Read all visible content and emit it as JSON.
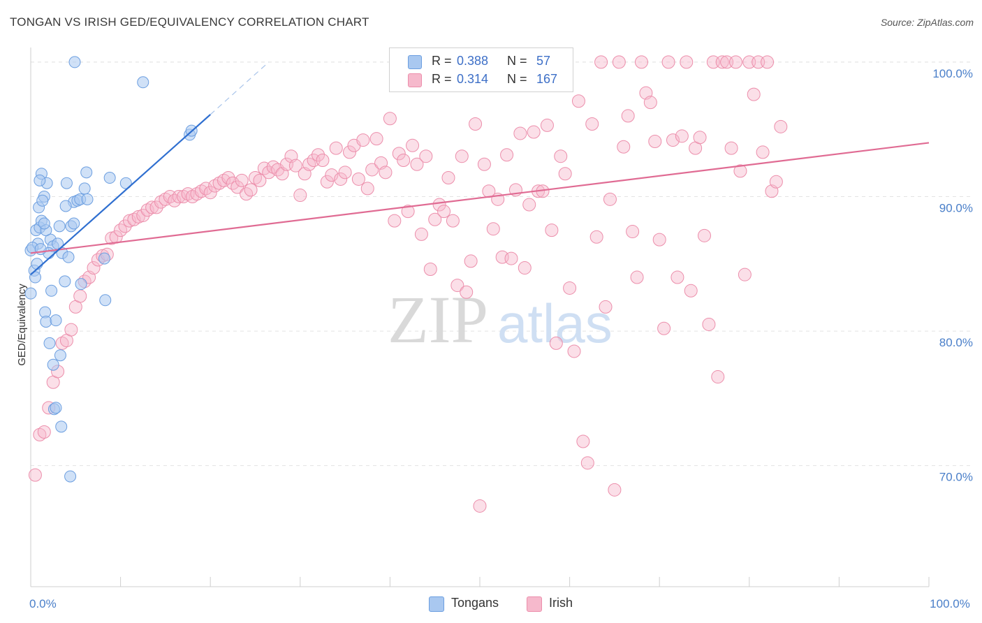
{
  "title": "TONGAN VS IRISH GED/EQUIVALENCY CORRELATION CHART",
  "source": "Source: ZipAtlas.com",
  "watermark": {
    "zip": "ZIP",
    "atlas": "atlas"
  },
  "colors": {
    "tongans_fill": "#a9c8f0",
    "tongans_stroke": "#6b9ee0",
    "tongans_line": "#2f6fd0",
    "irish_fill": "#f6b9cc",
    "irish_stroke": "#ec8eab",
    "irish_line": "#e06b93",
    "tick_label": "#4a7fc9",
    "grid": "#e3e3e3"
  },
  "legend": {
    "rows": [
      {
        "r_label": "R =",
        "r_value": "0.388",
        "n_label": "N =",
        "n_value": "57",
        "series": "tongans"
      },
      {
        "r_label": "R =",
        "r_value": "0.314",
        "n_label": "N =",
        "n_value": "167",
        "series": "irish"
      }
    ]
  },
  "bottom_legend": [
    {
      "label": "Tongans",
      "series": "tongans"
    },
    {
      "label": "Irish",
      "series": "irish"
    }
  ],
  "chart_data": {
    "type": "scatter",
    "title": "TONGAN VS IRISH GED/EQUIVALENCY CORRELATION CHART",
    "xlabel": "",
    "ylabel": "GED/Equivalency",
    "xlim": [
      0,
      100
    ],
    "ylim": [
      61,
      101.5
    ],
    "x_tick_labels": [
      {
        "value": 0,
        "label": "0.0%"
      },
      {
        "value": 100,
        "label": "100.0%"
      }
    ],
    "y_tick_labels": [
      {
        "value": 100,
        "label": "100.0%"
      },
      {
        "value": 90,
        "label": "90.0%"
      },
      {
        "value": 80,
        "label": "80.0%"
      },
      {
        "value": 70,
        "label": "70.0%"
      }
    ],
    "grid": "horizontal dashed",
    "legend_position": "top-center",
    "series": [
      {
        "name": "Tongans",
        "trendline": {
          "x": [
            0,
            20
          ],
          "y": [
            84.2,
            96.1
          ],
          "dashed_extension_to": [
            26.5,
            100
          ]
        },
        "points": [
          [
            0.0,
            86.0
          ],
          [
            0.6,
            87.5
          ],
          [
            0.8,
            86.5
          ],
          [
            1.0,
            87.7
          ],
          [
            1.2,
            88.2
          ],
          [
            1.5,
            90.0
          ],
          [
            1.8,
            91.0
          ],
          [
            2.2,
            86.8
          ],
          [
            2.5,
            86.3
          ],
          [
            3.0,
            86.5
          ],
          [
            3.2,
            87.8
          ],
          [
            3.5,
            85.8
          ],
          [
            4.5,
            87.8
          ],
          [
            4.8,
            89.6
          ],
          [
            5.2,
            89.7
          ],
          [
            5.5,
            89.8
          ],
          [
            6.0,
            90.6
          ],
          [
            0.9,
            89.2
          ],
          [
            1.3,
            89.7
          ],
          [
            0.4,
            84.5
          ],
          [
            0.5,
            84.0
          ],
          [
            1.6,
            81.4
          ],
          [
            1.7,
            80.7
          ],
          [
            2.8,
            80.8
          ],
          [
            2.3,
            83.0
          ],
          [
            3.8,
            83.7
          ],
          [
            5.6,
            83.5
          ],
          [
            8.2,
            85.4
          ],
          [
            8.3,
            82.3
          ],
          [
            2.1,
            79.1
          ],
          [
            3.3,
            78.2
          ],
          [
            2.5,
            77.5
          ],
          [
            2.6,
            74.2
          ],
          [
            2.8,
            74.3
          ],
          [
            3.4,
            72.9
          ],
          [
            4.4,
            69.2
          ],
          [
            1.2,
            91.7
          ],
          [
            1.0,
            91.2
          ],
          [
            4.0,
            91.0
          ],
          [
            6.2,
            91.8
          ],
          [
            8.8,
            91.4
          ],
          [
            10.6,
            91.0
          ],
          [
            4.9,
            100.0
          ],
          [
            12.5,
            98.5
          ],
          [
            17.7,
            94.6
          ],
          [
            17.9,
            94.9
          ],
          [
            0.0,
            82.8
          ],
          [
            4.8,
            88.0
          ],
          [
            1.7,
            87.5
          ],
          [
            2.0,
            85.8
          ],
          [
            4.2,
            85.5
          ],
          [
            0.2,
            86.2
          ],
          [
            1.5,
            88.0
          ],
          [
            3.9,
            89.3
          ],
          [
            6.3,
            89.8
          ],
          [
            0.7,
            85.0
          ],
          [
            1.1,
            86.1
          ]
        ]
      },
      {
        "name": "Irish",
        "trendline": {
          "x": [
            0,
            100
          ],
          "y": [
            85.8,
            94.0
          ]
        },
        "points": [
          [
            0.5,
            69.3
          ],
          [
            1.0,
            72.3
          ],
          [
            1.5,
            72.5
          ],
          [
            2.0,
            74.3
          ],
          [
            2.5,
            76.2
          ],
          [
            3.0,
            77.0
          ],
          [
            3.5,
            79.1
          ],
          [
            4.0,
            79.3
          ],
          [
            4.5,
            80.1
          ],
          [
            5.0,
            81.8
          ],
          [
            5.5,
            82.6
          ],
          [
            6.0,
            83.7
          ],
          [
            6.5,
            84.0
          ],
          [
            7.0,
            84.7
          ],
          [
            7.5,
            85.3
          ],
          [
            8.0,
            85.6
          ],
          [
            8.5,
            85.7
          ],
          [
            9.0,
            86.9
          ],
          [
            9.5,
            87.0
          ],
          [
            10.0,
            87.5
          ],
          [
            10.5,
            87.8
          ],
          [
            11.0,
            88.2
          ],
          [
            11.5,
            88.3
          ],
          [
            12.0,
            88.5
          ],
          [
            12.5,
            88.6
          ],
          [
            13.0,
            89.0
          ],
          [
            13.5,
            89.2
          ],
          [
            14.0,
            89.2
          ],
          [
            14.5,
            89.6
          ],
          [
            15.0,
            89.8
          ],
          [
            15.5,
            90.0
          ],
          [
            16.0,
            89.7
          ],
          [
            16.5,
            90.0
          ],
          [
            17.0,
            90.0
          ],
          [
            17.5,
            90.2
          ],
          [
            18.0,
            90.0
          ],
          [
            18.5,
            90.2
          ],
          [
            19.0,
            90.4
          ],
          [
            19.5,
            90.6
          ],
          [
            20.0,
            90.3
          ],
          [
            20.5,
            90.8
          ],
          [
            21.0,
            91.0
          ],
          [
            21.5,
            91.2
          ],
          [
            22.0,
            91.4
          ],
          [
            22.5,
            91.0
          ],
          [
            23.0,
            90.7
          ],
          [
            23.5,
            91.2
          ],
          [
            24.0,
            90.2
          ],
          [
            24.5,
            90.5
          ],
          [
            25.0,
            91.4
          ],
          [
            25.5,
            91.2
          ],
          [
            26.0,
            92.1
          ],
          [
            26.5,
            91.8
          ],
          [
            27.0,
            92.2
          ],
          [
            27.5,
            92.0
          ],
          [
            28.0,
            91.7
          ],
          [
            28.5,
            92.4
          ],
          [
            29.0,
            93.0
          ],
          [
            29.5,
            92.3
          ],
          [
            30.0,
            90.1
          ],
          [
            30.5,
            91.7
          ],
          [
            31.0,
            92.4
          ],
          [
            31.5,
            92.7
          ],
          [
            32.0,
            93.1
          ],
          [
            32.5,
            92.7
          ],
          [
            33.0,
            91.1
          ],
          [
            33.5,
            91.6
          ],
          [
            34.0,
            93.6
          ],
          [
            34.5,
            91.3
          ],
          [
            35.0,
            91.8
          ],
          [
            35.5,
            93.3
          ],
          [
            36.0,
            93.8
          ],
          [
            36.5,
            91.3
          ],
          [
            37.0,
            94.2
          ],
          [
            37.5,
            90.6
          ],
          [
            38.0,
            92.0
          ],
          [
            38.5,
            94.3
          ],
          [
            39.0,
            92.5
          ],
          [
            39.5,
            91.8
          ],
          [
            40.0,
            95.8
          ],
          [
            40.5,
            88.2
          ],
          [
            41.0,
            93.2
          ],
          [
            41.5,
            92.7
          ],
          [
            42.0,
            88.9
          ],
          [
            42.5,
            93.8
          ],
          [
            43.0,
            92.4
          ],
          [
            43.5,
            87.2
          ],
          [
            44.0,
            93.0
          ],
          [
            44.5,
            84.6
          ],
          [
            45.0,
            88.3
          ],
          [
            45.5,
            89.4
          ],
          [
            46.0,
            88.9
          ],
          [
            46.5,
            91.4
          ],
          [
            47.0,
            88.2
          ],
          [
            47.5,
            83.4
          ],
          [
            48.0,
            93.0
          ],
          [
            48.5,
            82.9
          ],
          [
            49.0,
            85.2
          ],
          [
            49.5,
            95.4
          ],
          [
            50.0,
            67.0
          ],
          [
            50.5,
            92.4
          ],
          [
            51.0,
            90.4
          ],
          [
            51.5,
            87.6
          ],
          [
            52.0,
            89.8
          ],
          [
            52.5,
            85.5
          ],
          [
            53.0,
            93.1
          ],
          [
            53.5,
            85.4
          ],
          [
            54.0,
            90.5
          ],
          [
            54.5,
            94.7
          ],
          [
            55.0,
            84.7
          ],
          [
            55.5,
            89.4
          ],
          [
            56.0,
            94.8
          ],
          [
            56.5,
            90.4
          ],
          [
            57.0,
            90.4
          ],
          [
            57.5,
            95.3
          ],
          [
            58.0,
            87.5
          ],
          [
            58.5,
            79.1
          ],
          [
            59.0,
            93.0
          ],
          [
            59.5,
            91.7
          ],
          [
            60.0,
            83.2
          ],
          [
            60.5,
            78.5
          ],
          [
            61.0,
            97.1
          ],
          [
            61.5,
            71.8
          ],
          [
            62.0,
            70.2
          ],
          [
            62.5,
            95.4
          ],
          [
            63.0,
            87.0
          ],
          [
            63.5,
            100.0
          ],
          [
            64.0,
            81.8
          ],
          [
            64.5,
            89.8
          ],
          [
            65.0,
            68.2
          ],
          [
            65.5,
            100.0
          ],
          [
            66.0,
            93.7
          ],
          [
            66.5,
            96.0
          ],
          [
            67.0,
            87.4
          ],
          [
            67.5,
            84.0
          ],
          [
            68.0,
            100.0
          ],
          [
            68.5,
            97.7
          ],
          [
            69.0,
            97.0
          ],
          [
            69.5,
            94.1
          ],
          [
            70.0,
            86.8
          ],
          [
            70.5,
            80.2
          ],
          [
            71.0,
            100.0
          ],
          [
            71.5,
            94.2
          ],
          [
            72.0,
            84.0
          ],
          [
            72.5,
            94.5
          ],
          [
            73.0,
            100.0
          ],
          [
            73.5,
            83.0
          ],
          [
            74.0,
            93.6
          ],
          [
            74.5,
            94.4
          ],
          [
            75.0,
            87.1
          ],
          [
            75.5,
            80.5
          ],
          [
            76.0,
            100.0
          ],
          [
            76.5,
            76.6
          ],
          [
            77.0,
            100.0
          ],
          [
            77.5,
            100.0
          ],
          [
            78.0,
            93.6
          ],
          [
            78.5,
            100.0
          ],
          [
            79.0,
            91.9
          ],
          [
            79.5,
            84.2
          ],
          [
            80.0,
            100.0
          ],
          [
            80.5,
            97.6
          ],
          [
            81.0,
            100.0
          ],
          [
            81.5,
            93.3
          ],
          [
            82.0,
            100.0
          ],
          [
            82.5,
            90.4
          ],
          [
            83.0,
            91.1
          ],
          [
            83.5,
            95.2
          ]
        ]
      }
    ]
  }
}
